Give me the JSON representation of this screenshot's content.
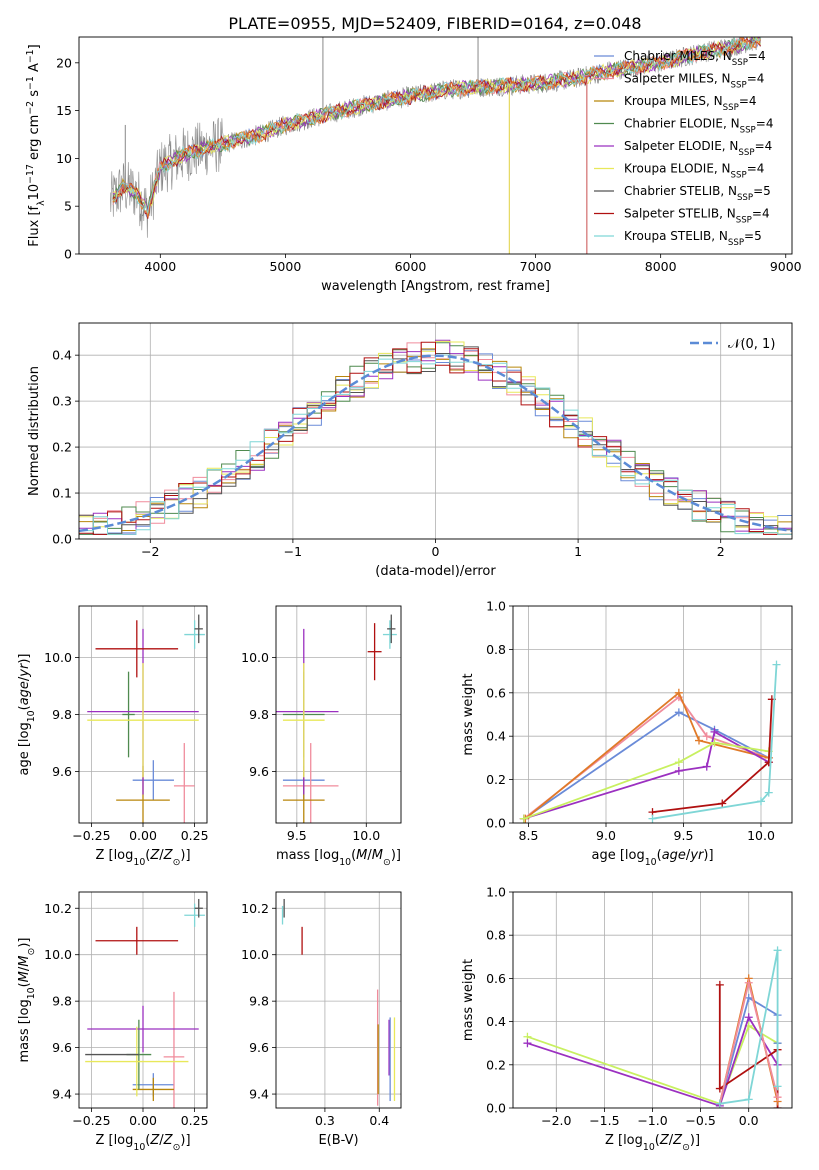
{
  "title": "PLATE=0955, MJD=52409, FIBERID=0164, z=0.048",
  "colors": {
    "chabrier_miles": "#6a8bd8",
    "salpeter_miles": "#f08c9c",
    "kroupa_miles": "#b8860b",
    "chabrier_elodie": "#4f8a4f",
    "salpeter_elodie": "#9b30c0",
    "kroupa_elodie": "#e8e85a",
    "chabrier_stelib": "#555555",
    "salpeter_stelib": "#b01010",
    "kroupa_stelib": "#7fd6d6",
    "data_gray": "#888888",
    "orange": "#e07a28",
    "normal_dashed": "#5b8bd6",
    "yellowgreen": "#c8f060",
    "grid": "#b0b0b0"
  },
  "legend_spectrum": [
    {
      "pre": "Chabrier MILES, N",
      "sub": "SSP",
      "post": "=4",
      "color": "#6a8bd8"
    },
    {
      "pre": "Salpeter MILES, N",
      "sub": "SSP",
      "post": "=4",
      "color": "#f08c9c"
    },
    {
      "pre": "Kroupa MILES, N",
      "sub": "SSP",
      "post": "=4",
      "color": "#b8860b"
    },
    {
      "pre": "Chabrier ELODIE, N",
      "sub": "SSP",
      "post": "=4",
      "color": "#4f8a4f"
    },
    {
      "pre": "Salpeter ELODIE, N",
      "sub": "SSP",
      "post": "=4",
      "color": "#9b30c0"
    },
    {
      "pre": "Kroupa ELODIE, N",
      "sub": "SSP",
      "post": "=4",
      "color": "#e8e85a"
    },
    {
      "pre": "Chabrier STELIB, N",
      "sub": "SSP",
      "post": "=5",
      "color": "#555555"
    },
    {
      "pre": "Salpeter STELIB, N",
      "sub": "SSP",
      "post": "=4",
      "color": "#b01010"
    },
    {
      "pre": "Kroupa STELIB, N",
      "sub": "SSP",
      "post": "=5",
      "color": "#7fd6d6"
    }
  ],
  "chart_data": [
    {
      "id": "spectrum",
      "type": "line",
      "xlabel": "wavelength [Angstrom, rest frame]",
      "ylabel": "Flux [f_λ 10^-17 erg cm^-2 s^-1 A^-1]",
      "xlim": [
        3350,
        9050
      ],
      "ylim": [
        0,
        22.7
      ],
      "xticks": [
        4000,
        5000,
        6000,
        7000,
        8000,
        9000
      ],
      "yticks": [
        0,
        5,
        10,
        15,
        20
      ],
      "grid": false,
      "legend_position": "top-right",
      "continuum": {
        "x": [
          3600,
          3700,
          3800,
          3900,
          4000,
          4200,
          4500,
          4800,
          5000,
          5300,
          5600,
          6000,
          6300,
          6600,
          7000,
          7300,
          7600,
          8000,
          8300,
          8600,
          8800
        ],
        "y": [
          5.5,
          7.0,
          6.5,
          4.5,
          9.0,
          10.5,
          11.5,
          12.5,
          13.5,
          14.5,
          15.5,
          16.5,
          17.2,
          17.5,
          17.8,
          18.3,
          19.2,
          20.0,
          21.0,
          21.8,
          22.5
        ]
      },
      "spikes": [
        {
          "x": 5300,
          "y": 22.7
        },
        {
          "x": 6790,
          "y": 0
        },
        {
          "x": 7410,
          "y": 0
        },
        {
          "x": 3720,
          "y": 13.5
        },
        {
          "x": 6540,
          "y": 22.7
        }
      ]
    },
    {
      "id": "residual_histogram",
      "type": "line",
      "xlabel": "(data-model)/error",
      "ylabel": "Normed distribution",
      "xlim": [
        -2.5,
        2.5
      ],
      "ylim": [
        0,
        0.47
      ],
      "xticks": [
        -2,
        -1,
        0,
        1,
        2
      ],
      "yticks": [
        0,
        0.1,
        0.2,
        0.3,
        0.4
      ],
      "grid": true,
      "legend": [
        {
          "label": "𝒩(0, 1)",
          "style": "dashed"
        }
      ],
      "legend_position": "top-right"
    },
    {
      "id": "age_vs_Z",
      "type": "scatter",
      "xlabel": "Z [log10(Z/Z⊙)]",
      "ylabel": "age  [log10(age/yr)]",
      "xlim": [
        -0.31,
        0.31
      ],
      "ylim": [
        9.42,
        10.18
      ],
      "xticks": [
        -0.25,
        0.0,
        0.25
      ],
      "yticks": [
        9.6,
        9.8,
        10.0
      ],
      "grid": true,
      "points": [
        {
          "model": "chabrier_miles",
          "x": 0.05,
          "y": 9.57,
          "xerr": 0.1,
          "yerr": 0.07
        },
        {
          "model": "salpeter_miles",
          "x": 0.2,
          "y": 9.55,
          "xerr": 0.05,
          "yerr": 0.15
        },
        {
          "model": "kroupa_miles",
          "x": 0.0,
          "y": 9.5,
          "xerr": 0.13,
          "yerr": 0.12
        },
        {
          "model": "chabrier_elodie",
          "x": -0.07,
          "y": 9.8,
          "xerr": 0.03,
          "yerr": 0.15
        },
        {
          "model": "salpeter_elodie",
          "x": 0.0,
          "y": 9.81,
          "xerr": 0.27,
          "yerr": 0.29
        },
        {
          "model": "kroupa_elodie",
          "x": 0.0,
          "y": 9.78,
          "xerr": 0.27,
          "yerr": 0.2
        },
        {
          "model": "salpeter_stelib",
          "x": -0.03,
          "y": 10.03,
          "xerr": 0.2,
          "yerr": 0.1
        },
        {
          "model": "kroupa_stelib",
          "x": 0.25,
          "y": 10.08,
          "xerr": 0.05,
          "yerr": 0.05
        },
        {
          "model": "chabrier_stelib",
          "x": 0.27,
          "y": 10.1,
          "xerr": 0.02,
          "yerr": 0.05
        }
      ]
    },
    {
      "id": "age_vs_mass",
      "type": "scatter",
      "xlabel": "mass [log10(M/M⊙)]",
      "ylabel": "",
      "xlim": [
        9.35,
        10.25
      ],
      "ylim": [
        9.42,
        10.18
      ],
      "xticks": [
        9.5,
        10.0
      ],
      "yticks": [
        9.6,
        9.8,
        10.0
      ],
      "grid": true,
      "points": [
        {
          "model": "chabrier_miles",
          "x": 9.55,
          "y": 9.57,
          "xerr": 0.15,
          "yerr": 0.07
        },
        {
          "model": "salpeter_miles",
          "x": 9.6,
          "y": 9.55,
          "xerr": 0.2,
          "yerr": 0.15
        },
        {
          "model": "kroupa_miles",
          "x": 9.55,
          "y": 9.5,
          "xerr": 0.15,
          "yerr": 0.12
        },
        {
          "model": "chabrier_elodie",
          "x": 9.55,
          "y": 9.8,
          "xerr": 0.15,
          "yerr": 0.15
        },
        {
          "model": "salpeter_elodie",
          "x": 9.55,
          "y": 9.81,
          "xerr": 0.25,
          "yerr": 0.29
        },
        {
          "model": "kroupa_elodie",
          "x": 9.55,
          "y": 9.78,
          "xerr": 0.15,
          "yerr": 0.2
        },
        {
          "model": "salpeter_stelib",
          "x": 10.06,
          "y": 10.02,
          "xerr": 0.05,
          "yerr": 0.1
        },
        {
          "model": "kroupa_stelib",
          "x": 10.17,
          "y": 10.08,
          "xerr": 0.05,
          "yerr": 0.05
        },
        {
          "model": "chabrier_stelib",
          "x": 10.18,
          "y": 10.1,
          "xerr": 0.03,
          "yerr": 0.05
        }
      ]
    },
    {
      "id": "weight_vs_age",
      "type": "line",
      "xlabel": "age  [log10(age/yr)]",
      "ylabel": "mass weight",
      "xlim": [
        8.4,
        10.2
      ],
      "ylim": [
        0,
        1.0
      ],
      "xticks": [
        8.5,
        9.0,
        9.5,
        10.0
      ],
      "yticks": [
        0.0,
        0.2,
        0.4,
        0.6,
        0.8,
        1.0
      ],
      "grid": true,
      "series": [
        {
          "model": "chabrier_miles",
          "x": [
            8.47,
            9.47,
            9.7,
            10.05
          ],
          "y": [
            0.02,
            0.51,
            0.43,
            0.3
          ]
        },
        {
          "model": "salpeter_miles",
          "x": [
            8.47,
            9.47,
            9.65,
            10.05
          ],
          "y": [
            0.02,
            0.58,
            0.4,
            0.3
          ]
        },
        {
          "model": "orange",
          "x": [
            8.48,
            9.47,
            9.6,
            10.05
          ],
          "y": [
            0.02,
            0.6,
            0.38,
            0.3
          ]
        },
        {
          "model": "salpeter_elodie",
          "x": [
            8.47,
            9.47,
            9.65,
            9.7,
            10.05
          ],
          "y": [
            0.02,
            0.24,
            0.26,
            0.42,
            0.28
          ]
        },
        {
          "model": "yellowgreen",
          "x": [
            8.47,
            9.47,
            9.7,
            10.05
          ],
          "y": [
            0.02,
            0.28,
            0.37,
            0.33
          ]
        },
        {
          "model": "salpeter_stelib",
          "x": [
            9.3,
            9.75,
            10.05,
            10.07
          ],
          "y": [
            0.05,
            0.09,
            0.28,
            0.57
          ]
        },
        {
          "model": "kroupa_stelib",
          "x": [
            9.3,
            10.0,
            10.05,
            10.1
          ],
          "y": [
            0.02,
            0.1,
            0.14,
            0.73
          ]
        }
      ]
    },
    {
      "id": "mass_vs_Z",
      "type": "scatter",
      "xlabel": "Z [log10(Z/Z⊙)]",
      "ylabel": "mass [log10(M/M⊙)]",
      "xlim": [
        -0.31,
        0.31
      ],
      "ylim": [
        9.34,
        10.27
      ],
      "xticks": [
        -0.25,
        0.0,
        0.25
      ],
      "yticks": [
        9.4,
        9.6,
        9.8,
        10.0,
        10.2
      ],
      "grid": true,
      "points": [
        {
          "model": "chabrier_miles",
          "x": 0.05,
          "y": 9.44,
          "xerr": 0.1,
          "yerr": 0.05
        },
        {
          "model": "salpeter_miles",
          "x": 0.15,
          "y": 9.56,
          "xerr": 0.05,
          "yerr": 0.28
        },
        {
          "model": "kroupa_miles",
          "x": 0.05,
          "y": 9.42,
          "xerr": 0.1,
          "yerr": 0.05
        },
        {
          "model": "chabrier_elodie",
          "x": -0.02,
          "y": 9.57,
          "xerr": 0.06,
          "yerr": 0.15
        },
        {
          "model": "salpeter_elodie",
          "x": 0.0,
          "y": 9.68,
          "xerr": 0.27,
          "yerr": 0.1
        },
        {
          "model": "kroupa_elodie",
          "x": -0.03,
          "y": 9.54,
          "xerr": 0.25,
          "yerr": 0.15
        },
        {
          "model": "chabrier_stelib",
          "x": -0.15,
          "y": 9.57,
          "xerr": 0.13,
          "yerr": 0.0
        },
        {
          "model": "salpeter_stelib",
          "x": -0.03,
          "y": 10.06,
          "xerr": 0.2,
          "yerr": 0.06
        },
        {
          "model": "kroupa_stelib",
          "x": 0.25,
          "y": 10.17,
          "xerr": 0.05,
          "yerr": 0.05
        },
        {
          "model": "chabrier_stelib",
          "x": 0.27,
          "y": 10.2,
          "xerr": 0.02,
          "yerr": 0.04
        }
      ]
    },
    {
      "id": "mass_vs_ebv",
      "type": "scatter",
      "xlabel": "E(B-V)",
      "ylabel": "",
      "xlim": [
        0.21,
        0.44
      ],
      "ylim": [
        9.34,
        10.27
      ],
      "xticks": [
        0.3,
        0.4
      ],
      "yticks": [
        9.4,
        9.6,
        9.8,
        10.0,
        10.2
      ],
      "grid": true,
      "points": [
        {
          "model": "chabrier_stelib",
          "x": 0.225,
          "y": 10.2,
          "xerr": 0,
          "yerr": 0.04
        },
        {
          "model": "kroupa_stelib",
          "x": 0.222,
          "y": 10.17,
          "xerr": 0,
          "yerr": 0.04
        },
        {
          "model": "salpeter_stelib",
          "x": 0.258,
          "y": 10.06,
          "xerr": 0,
          "yerr": 0.06
        },
        {
          "model": "salpeter_miles",
          "x": 0.397,
          "y": 9.6,
          "xerr": 0,
          "yerr": 0.25
        },
        {
          "model": "kroupa_miles",
          "x": 0.398,
          "y": 9.55,
          "xerr": 0,
          "yerr": 0.15
        },
        {
          "model": "salpeter_elodie",
          "x": 0.418,
          "y": 9.6,
          "xerr": 0,
          "yerr": 0.12
        },
        {
          "model": "chabrier_miles",
          "x": 0.42,
          "y": 9.55,
          "xerr": 0,
          "yerr": 0.18
        },
        {
          "model": "kroupa_elodie",
          "x": 0.428,
          "y": 9.55,
          "xerr": 0,
          "yerr": 0.18
        }
      ]
    },
    {
      "id": "weight_vs_Z",
      "type": "line",
      "xlabel": "Z [log10(Z/Z⊙)]",
      "ylabel": "mass weight",
      "xlim": [
        -2.45,
        0.45
      ],
      "ylim": [
        0,
        1.0
      ],
      "xticks": [
        -2.0,
        -1.5,
        -1.0,
        -0.5,
        0.0
      ],
      "yticks": [
        0.0,
        0.2,
        0.4,
        0.6,
        0.8,
        1.0
      ],
      "grid": true,
      "series": [
        {
          "model": "yellowgreen",
          "x": [
            -2.3,
            -0.3,
            0.0,
            0.3
          ],
          "y": [
            0.33,
            0.02,
            0.38,
            0.3
          ]
        },
        {
          "model": "salpeter_elodie",
          "x": [
            -2.3,
            -0.3,
            0.0,
            0.3
          ],
          "y": [
            0.3,
            0.01,
            0.42,
            0.2
          ]
        },
        {
          "model": "salpeter_stelib",
          "x": [
            -0.3,
            -0.3,
            0.3,
            0.3
          ],
          "y": [
            0.57,
            0.09,
            0.27,
            0.0
          ]
        },
        {
          "model": "chabrier_miles",
          "x": [
            -0.3,
            0.0,
            0.3,
            0.3
          ],
          "y": [
            0.02,
            0.51,
            0.43,
            0.3
          ]
        },
        {
          "model": "orange",
          "x": [
            -0.3,
            0.0,
            0.3
          ],
          "y": [
            0.02,
            0.6,
            0.03
          ]
        },
        {
          "model": "salpeter_miles",
          "x": [
            -0.3,
            0.0,
            0.3
          ],
          "y": [
            0.02,
            0.58,
            0.05
          ]
        },
        {
          "model": "kroupa_stelib",
          "x": [
            -0.3,
            0.0,
            0.3,
            0.3
          ],
          "y": [
            0.02,
            0.04,
            0.73,
            0.1
          ]
        }
      ]
    }
  ]
}
